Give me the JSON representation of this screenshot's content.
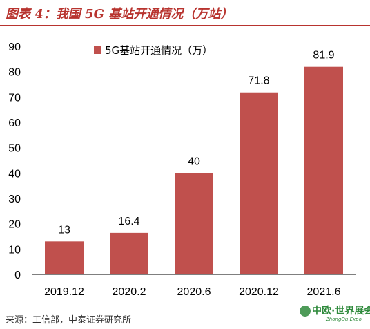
{
  "header": {
    "title": "图表 4：我国 5G 基站开通情况（万站）"
  },
  "footer": {
    "source": "来源：工信部，中泰证券研究所"
  },
  "watermark": {
    "text": "中欧·世界展会",
    "subtext": "ZhongOu Expo",
    "color": "#2f8a3c"
  },
  "chart_data": {
    "type": "bar",
    "title": "图表 4：我国 5G 基站开通情况（万站）",
    "categories": [
      "2019.12",
      "2020.2",
      "2020.6",
      "2020.12",
      "2021.6"
    ],
    "series": [
      {
        "name": "5G基站开通情况（万）",
        "values": [
          13,
          16.4,
          40,
          71.8,
          81.9
        ],
        "color": "#c0504d"
      }
    ],
    "data_labels": [
      "13",
      "16.4",
      "40",
      "71.8",
      "81.9"
    ],
    "ylim": [
      0,
      90
    ],
    "yticks": [
      0,
      10,
      20,
      30,
      40,
      50,
      60,
      70,
      80,
      90
    ],
    "xlabel": "",
    "ylabel": "",
    "grid": false,
    "legend": "top-left"
  }
}
